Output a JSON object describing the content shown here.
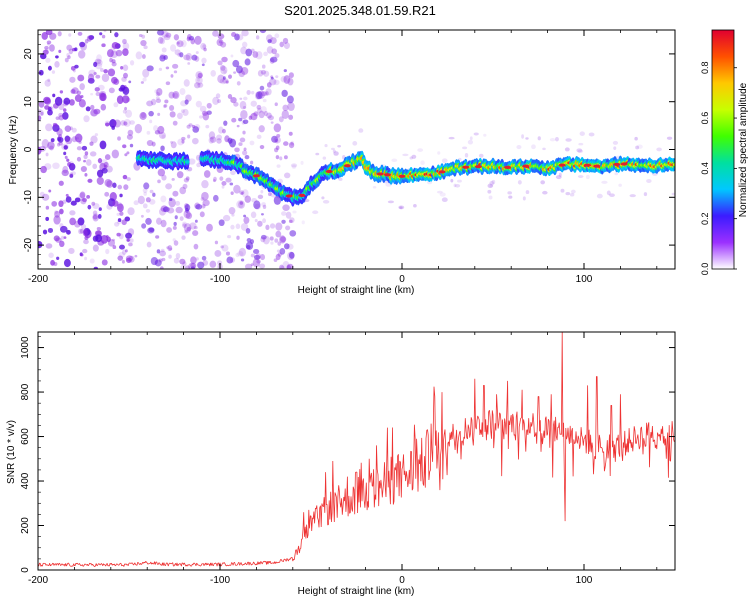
{
  "title": "S201.2025.348.01.59.R21",
  "chart_data": [
    {
      "type": "heatmap",
      "name": "spectrogram",
      "xlabel": "Height of straight line (km)",
      "ylabel": "Frequency (Hz)",
      "xlim": [
        -200,
        150
      ],
      "ylim": [
        -25,
        25
      ],
      "xticks": [
        -200,
        -100,
        0,
        100
      ],
      "yticks": [
        -20,
        -10,
        0,
        10,
        20
      ],
      "colorbar": {
        "label": "Normalized spectral amplitude",
        "range": [
          0,
          0.95
        ],
        "ticks": [
          "0.0",
          "0.2",
          "0.4",
          "0.6",
          "0.8"
        ],
        "tick_values": [
          0,
          0.2,
          0.4,
          0.6,
          0.8
        ],
        "colors": [
          "#ffffff",
          "#9b30ff",
          "#3b1bff",
          "#00c8ff",
          "#00e0a0",
          "#40ff00",
          "#c8ff00",
          "#ffc800",
          "#ff5000",
          "#e00030"
        ]
      },
      "ridge": {
        "x": [
          -145,
          -140,
          -135,
          -130,
          -125,
          -120,
          -110,
          -100,
          -95,
          -90,
          -85,
          -80,
          -75,
          -70,
          -65,
          -60,
          -55,
          -50,
          -45,
          -40,
          -35,
          -30,
          -25,
          -22,
          -20,
          -15,
          -10,
          -5,
          0,
          10,
          20,
          30,
          40,
          50,
          60,
          70,
          80,
          90,
          100,
          110,
          120,
          130,
          140,
          150
        ],
        "y": [
          -1.8,
          -2.2,
          -2.4,
          -2.2,
          -2.5,
          -2.3,
          -2.0,
          -2.2,
          -2.5,
          -3.3,
          -4.6,
          -5.5,
          -6.5,
          -8.0,
          -9.3,
          -10.0,
          -9.6,
          -7.4,
          -5.5,
          -4.6,
          -4.2,
          -3.4,
          -2.3,
          -1.8,
          -3.4,
          -5.0,
          -5.2,
          -5.4,
          -5.6,
          -5.2,
          -4.9,
          -3.8,
          -3.6,
          -3.5,
          -3.8,
          -3.4,
          -3.9,
          -3.1,
          -3.2,
          -3.6,
          -3.0,
          -3.2,
          -3.3,
          -3.2
        ]
      }
    },
    {
      "type": "line",
      "name": "snr",
      "xlabel": "Height of straight line (km)",
      "ylabel": "SNR (10 * v/v)",
      "xlim": [
        -200,
        150
      ],
      "ylim": [
        0,
        1070
      ],
      "xticks": [
        -200,
        -100,
        0,
        100
      ],
      "yticks": [
        0,
        200,
        400,
        600,
        800,
        1000
      ],
      "color": "#ee3333",
      "envelope": {
        "x": [
          -200,
          -150,
          -140,
          -130,
          -100,
          -70,
          -60,
          -50,
          -40,
          -30,
          -20,
          -10,
          0,
          10,
          20,
          30,
          40,
          50,
          60,
          70,
          80,
          88,
          95,
          100,
          110,
          120,
          130,
          140,
          150
        ],
        "y": [
          20,
          20,
          30,
          22,
          22,
          30,
          50,
          200,
          280,
          320,
          350,
          380,
          420,
          460,
          560,
          620,
          650,
          670,
          660,
          660,
          640,
          620,
          600,
          580,
          560,
          560,
          600,
          620,
          620
        ]
      },
      "spikes": {
        "x": [
          -54,
          -42,
          -38,
          -30,
          -25,
          -18,
          -14,
          -8,
          -2,
          8,
          18,
          22,
          40,
          45,
          52,
          58,
          66,
          75,
          82,
          88,
          89.5,
          102,
          107,
          115,
          120
        ],
        "y": [
          260,
          440,
          490,
          420,
          440,
          500,
          560,
          640,
          520,
          590,
          780,
          800,
          860,
          830,
          790,
          850,
          810,
          780,
          790,
          1072,
          220,
          830,
          870,
          740,
          790
        ]
      }
    }
  ]
}
